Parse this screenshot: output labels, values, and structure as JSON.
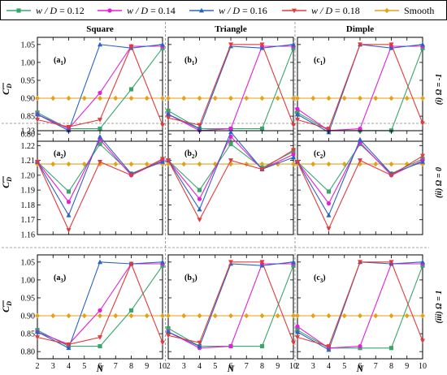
{
  "legend": [
    {
      "label_italic": "w / D",
      "label_rest": " = 0.12",
      "color": "#3aa66d",
      "marker": "square"
    },
    {
      "label_italic": "w / D",
      "label_rest": " = 0.14",
      "color": "#e51fd6",
      "marker": "circle"
    },
    {
      "label_italic": "w / D",
      "label_rest": " = 0.16",
      "color": "#2b63c2",
      "marker": "triangle-up"
    },
    {
      "label_italic": "w / D",
      "label_rest": " = 0.18",
      "color": "#e23b3b",
      "marker": "triangle-down"
    },
    {
      "label_italic": "",
      "label_rest": "Smooth",
      "color": "#e3a21a",
      "marker": "diamond"
    }
  ],
  "column_headers": [
    "Square",
    "Triangle",
    "Dimple"
  ],
  "row_labels": [
    {
      "paren": "(i) ",
      "text": "Ω = -1"
    },
    {
      "paren": "(ii) ",
      "text": "Ω = 0"
    },
    {
      "paren": "(iii) ",
      "text": "Ω = 1"
    }
  ],
  "xlabel": "N",
  "ylabel_main": "C",
  "ylabel_sub": "D",
  "chart_data": {
    "type": "line",
    "x": [
      2,
      3,
      4,
      5,
      6,
      7,
      8,
      9,
      10
    ],
    "xticks": [
      2,
      3,
      4,
      5,
      6,
      7,
      8,
      9,
      10
    ],
    "xlim": [
      2,
      10
    ],
    "rows": [
      {
        "ylim": [
          0.78,
          1.07
        ],
        "yticks": [
          0.8,
          0.85,
          0.9,
          0.95,
          1.0,
          1.05
        ],
        "yticklabels": [
          "0.80",
          "0.85",
          "0.90",
          "0.95",
          "1.00",
          "1.05"
        ],
        "panels": [
          {
            "letter": "a",
            "num": "1",
            "series": [
              {
                "x": [
                  2,
                  4,
                  6,
                  8,
                  10
                ],
                "y": [
                  0.86,
                  0.815,
                  0.815,
                  0.925,
                  1.04
                ]
              },
              {
                "x": [
                  2,
                  4,
                  6,
                  8,
                  10
                ],
                "y": [
                  0.855,
                  0.815,
                  0.915,
                  1.045,
                  1.045
                ]
              },
              {
                "x": [
                  2,
                  4,
                  6,
                  8,
                  10
                ],
                "y": [
                  0.855,
                  0.81,
                  1.05,
                  1.04,
                  1.05
                ]
              },
              {
                "x": [
                  2,
                  4,
                  6,
                  8,
                  10
                ],
                "y": [
                  0.84,
                  0.82,
                  0.84,
                  1.045,
                  0.825
                ]
              },
              {
                "x": [
                  2,
                  4,
                  6,
                  8,
                  10
                ],
                "y": [
                  0.9,
                  0.9,
                  0.9,
                  0.9,
                  0.9
                ]
              }
            ]
          },
          {
            "letter": "b",
            "num": "1",
            "series": [
              {
                "x": [
                  2,
                  4,
                  6,
                  8,
                  10
                ],
                "y": [
                  0.865,
                  0.815,
                  0.815,
                  0.815,
                  1.04
                ]
              },
              {
                "x": [
                  2,
                  4,
                  6,
                  8,
                  10
                ],
                "y": [
                  0.855,
                  0.81,
                  0.815,
                  1.045,
                  1.045
                ]
              },
              {
                "x": [
                  2,
                  4,
                  6,
                  8,
                  10
                ],
                "y": [
                  0.855,
                  0.815,
                  1.045,
                  1.04,
                  1.05
                ]
              },
              {
                "x": [
                  2,
                  4,
                  6,
                  8,
                  10
                ],
                "y": [
                  0.845,
                  0.825,
                  1.05,
                  1.05,
                  0.825
                ]
              },
              {
                "x": [
                  2,
                  4,
                  6,
                  8,
                  10
                ],
                "y": [
                  0.9,
                  0.9,
                  0.9,
                  0.9,
                  0.9
                ]
              }
            ]
          },
          {
            "letter": "c",
            "num": "1",
            "series": [
              {
                "x": [
                  2,
                  4,
                  6,
                  8,
                  10
                ],
                "y": [
                  0.86,
                  0.81,
                  0.81,
                  0.81,
                  1.04
                ]
              },
              {
                "x": [
                  2,
                  4,
                  6,
                  8,
                  10
                ],
                "y": [
                  0.87,
                  0.81,
                  0.815,
                  1.045,
                  1.045
                ]
              },
              {
                "x": [
                  2,
                  4,
                  6,
                  8,
                  10
                ],
                "y": [
                  0.855,
                  0.805,
                  1.05,
                  1.04,
                  1.05
                ]
              },
              {
                "x": [
                  2,
                  4,
                  6,
                  8,
                  10
                ],
                "y": [
                  0.84,
                  0.815,
                  1.05,
                  1.05,
                  0.83
                ]
              },
              {
                "x": [
                  2,
                  4,
                  6,
                  8,
                  10
                ],
                "y": [
                  0.9,
                  0.9,
                  0.9,
                  0.9,
                  0.9
                ]
              }
            ]
          }
        ]
      },
      {
        "ylim": [
          1.16,
          1.23
        ],
        "yticks": [
          1.16,
          1.17,
          1.18,
          1.19,
          1.2,
          1.21,
          1.22,
          1.23
        ],
        "yticklabels": [
          "1.16",
          "1.17",
          "1.18",
          "1.19",
          "1.20",
          "1.21",
          "1.22",
          "1.23"
        ],
        "panels": [
          {
            "letter": "a",
            "num": "2",
            "series": [
              {
                "x": [
                  2,
                  4,
                  6,
                  8,
                  10
                ],
                "y": [
                  1.209,
                  1.189,
                  1.221,
                  1.201,
                  1.21
                ]
              },
              {
                "x": [
                  2,
                  4,
                  6,
                  8,
                  10
                ],
                "y": [
                  1.209,
                  1.182,
                  1.224,
                  1.2,
                  1.21
                ]
              },
              {
                "x": [
                  2,
                  4,
                  6,
                  8,
                  10
                ],
                "y": [
                  1.209,
                  1.173,
                  1.226,
                  1.201,
                  1.209
                ]
              },
              {
                "x": [
                  2,
                  4,
                  6,
                  8,
                  10
                ],
                "y": [
                  1.209,
                  1.163,
                  1.209,
                  1.2,
                  1.211
                ]
              },
              {
                "x": [
                  2,
                  4,
                  6,
                  8,
                  10
                ],
                "y": [
                  1.2075,
                  1.2075,
                  1.2075,
                  1.2075,
                  1.2075
                ]
              }
            ]
          },
          {
            "letter": "b",
            "num": "2",
            "series": [
              {
                "x": [
                  2,
                  4,
                  6,
                  8,
                  10
                ],
                "y": [
                  1.21,
                  1.19,
                  1.221,
                  1.205,
                  1.216
                ]
              },
              {
                "x": [
                  2,
                  4,
                  6,
                  8,
                  10
                ],
                "y": [
                  1.21,
                  1.184,
                  1.226,
                  1.204,
                  1.214
                ]
              },
              {
                "x": [
                  2,
                  4,
                  6,
                  8,
                  10
                ],
                "y": [
                  1.21,
                  1.177,
                  1.229,
                  1.204,
                  1.212
                ]
              },
              {
                "x": [
                  2,
                  4,
                  6,
                  8,
                  10
                ],
                "y": [
                  1.21,
                  1.17,
                  1.21,
                  1.204,
                  1.217
                ]
              },
              {
                "x": [
                  2,
                  4,
                  6,
                  8,
                  10
                ],
                "y": [
                  1.2075,
                  1.2075,
                  1.2075,
                  1.2075,
                  1.2075
                ]
              }
            ]
          },
          {
            "letter": "c",
            "num": "2",
            "series": [
              {
                "x": [
                  2,
                  4,
                  6,
                  8,
                  10
                ],
                "y": [
                  1.209,
                  1.189,
                  1.221,
                  1.201,
                  1.211
                ]
              },
              {
                "x": [
                  2,
                  4,
                  6,
                  8,
                  10
                ],
                "y": [
                  1.209,
                  1.181,
                  1.222,
                  1.2,
                  1.21
                ]
              },
              {
                "x": [
                  2,
                  4,
                  6,
                  8,
                  10
                ],
                "y": [
                  1.209,
                  1.173,
                  1.224,
                  1.201,
                  1.209
                ]
              },
              {
                "x": [
                  2,
                  4,
                  6,
                  8,
                  10
                ],
                "y": [
                  1.209,
                  1.164,
                  1.21,
                  1.2,
                  1.213
                ]
              },
              {
                "x": [
                  2,
                  4,
                  6,
                  8,
                  10
                ],
                "y": [
                  1.2075,
                  1.2075,
                  1.2075,
                  1.2075,
                  1.2075
                ]
              }
            ]
          }
        ]
      },
      {
        "ylim": [
          0.78,
          1.07
        ],
        "yticks": [
          0.8,
          0.85,
          0.9,
          0.95,
          1.0,
          1.05
        ],
        "yticklabels": [
          "0.80",
          "0.85",
          "0.90",
          "0.95",
          "1.00",
          "1.05"
        ],
        "panels": [
          {
            "letter": "a",
            "num": "3",
            "series": [
              {
                "x": [
                  2,
                  4,
                  6,
                  8,
                  10
                ],
                "y": [
                  0.86,
                  0.815,
                  0.815,
                  0.915,
                  1.04
                ]
              },
              {
                "x": [
                  2,
                  4,
                  6,
                  8,
                  10
                ],
                "y": [
                  0.855,
                  0.82,
                  0.915,
                  1.045,
                  1.045
                ]
              },
              {
                "x": [
                  2,
                  4,
                  6,
                  8,
                  10
                ],
                "y": [
                  0.855,
                  0.81,
                  1.05,
                  1.045,
                  1.05
                ]
              },
              {
                "x": [
                  2,
                  4,
                  6,
                  8,
                  10
                ],
                "y": [
                  0.84,
                  0.82,
                  0.84,
                  1.045,
                  0.825
                ]
              },
              {
                "x": [
                  2,
                  4,
                  6,
                  8,
                  10
                ],
                "y": [
                  0.9,
                  0.9,
                  0.9,
                  0.9,
                  0.9
                ]
              }
            ]
          },
          {
            "letter": "b",
            "num": "3",
            "series": [
              {
                "x": [
                  2,
                  4,
                  6,
                  8,
                  10
                ],
                "y": [
                  0.865,
                  0.815,
                  0.815,
                  0.815,
                  1.04
                ]
              },
              {
                "x": [
                  2,
                  4,
                  6,
                  8,
                  10
                ],
                "y": [
                  0.855,
                  0.81,
                  0.815,
                  1.045,
                  1.045
                ]
              },
              {
                "x": [
                  2,
                  4,
                  6,
                  8,
                  10
                ],
                "y": [
                  0.855,
                  0.815,
                  1.045,
                  1.04,
                  1.05
                ]
              },
              {
                "x": [
                  2,
                  4,
                  6,
                  8,
                  10
                ],
                "y": [
                  0.845,
                  0.825,
                  1.05,
                  1.05,
                  0.825
                ]
              },
              {
                "x": [
                  2,
                  4,
                  6,
                  8,
                  10
                ],
                "y": [
                  0.9,
                  0.9,
                  0.9,
                  0.9,
                  0.9
                ]
              }
            ]
          },
          {
            "letter": "c",
            "num": "3",
            "series": [
              {
                "x": [
                  2,
                  4,
                  6,
                  8,
                  10
                ],
                "y": [
                  0.86,
                  0.81,
                  0.81,
                  0.81,
                  1.04
                ]
              },
              {
                "x": [
                  2,
                  4,
                  6,
                  8,
                  10
                ],
                "y": [
                  0.87,
                  0.81,
                  0.815,
                  1.045,
                  1.045
                ]
              },
              {
                "x": [
                  2,
                  4,
                  6,
                  8,
                  10
                ],
                "y": [
                  0.855,
                  0.805,
                  1.05,
                  1.045,
                  1.05
                ]
              },
              {
                "x": [
                  2,
                  4,
                  6,
                  8,
                  10
                ],
                "y": [
                  0.84,
                  0.815,
                  1.05,
                  1.05,
                  0.83
                ]
              },
              {
                "x": [
                  2,
                  4,
                  6,
                  8,
                  10
                ],
                "y": [
                  0.9,
                  0.9,
                  0.9,
                  0.9,
                  0.9
                ]
              }
            ]
          }
        ]
      }
    ]
  }
}
